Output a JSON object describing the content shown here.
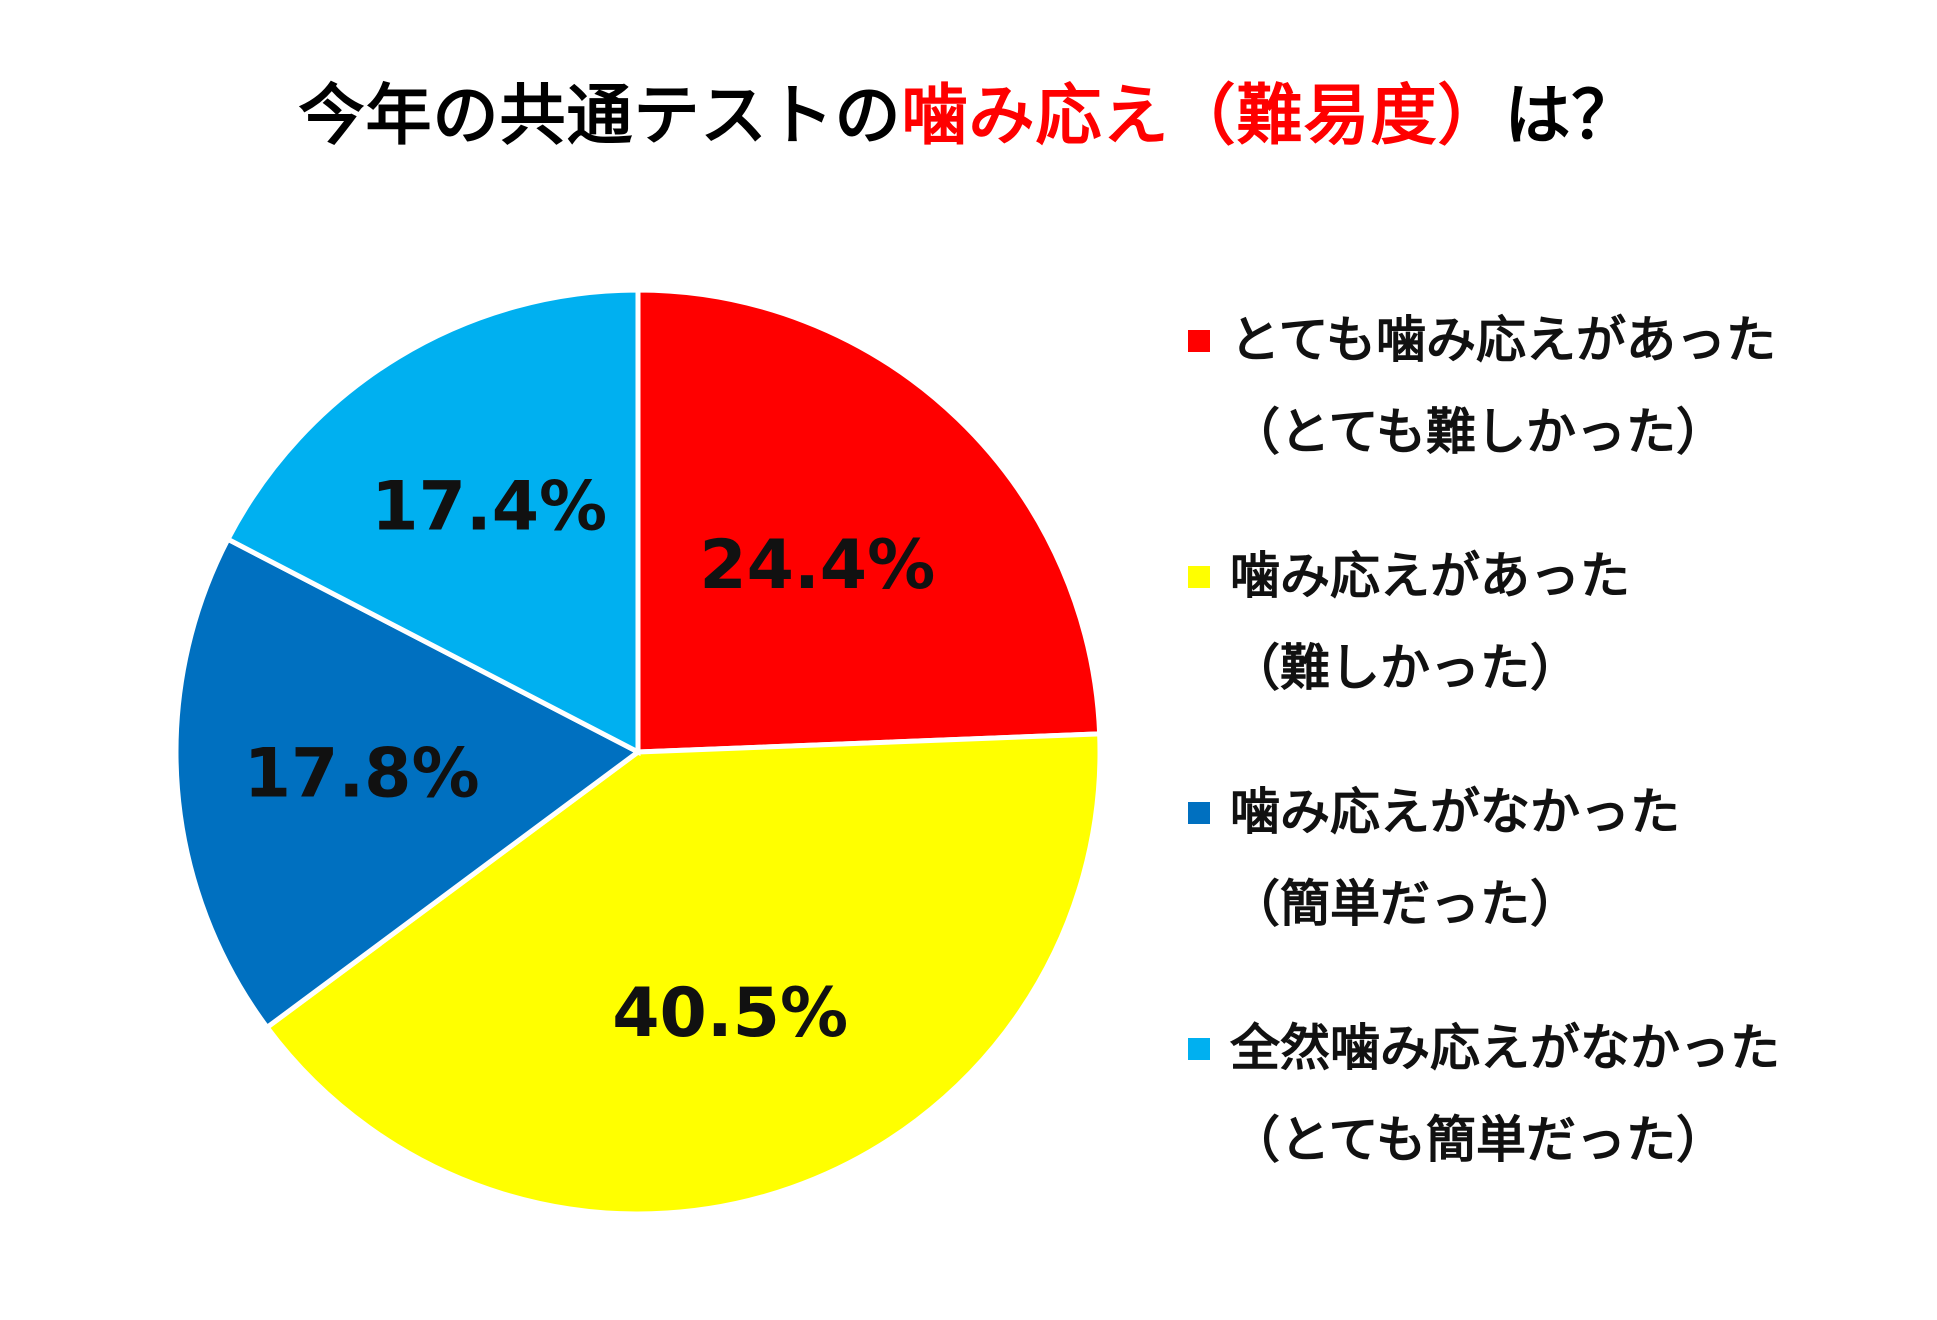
{
  "title": {
    "prefix": "今年の共通テストの",
    "highlight": "噛み応え（難易度）",
    "suffix": "は？",
    "highlight_color": "#ff0000"
  },
  "chart_data": {
    "type": "pie",
    "title": "今年の共通テストの噛み応え（難易度）は？",
    "legend_position": "right",
    "slices": [
      {
        "label": "とても噛み応えがあった（とても難しかった）",
        "value": 24.4,
        "display": "24.4%",
        "color": "#ff0000"
      },
      {
        "label": "噛み応えがあった（難しかった）",
        "value": 40.5,
        "display": "40.5%",
        "color": "#ffff00"
      },
      {
        "label": "噛み応えがなかった（簡単だった）",
        "value": 17.8,
        "display": "17.8%",
        "color": "#0070c0"
      },
      {
        "label": "全然噛み応えがなかった（とても簡単だった）",
        "value": 17.4,
        "display": "17.4%",
        "color": "#00b0f0"
      }
    ]
  },
  "legend": [
    {
      "line1": "とても噛み応えがあった",
      "line2": "（とても難しかった）",
      "color": "#ff0000"
    },
    {
      "line1": "噛み応えがあった",
      "line2": "（難しかった）",
      "color": "#ffff00"
    },
    {
      "line1": "噛み応えがなかった",
      "line2": "（簡単だった）",
      "color": "#0070c0"
    },
    {
      "line1": "全然噛み応えがなかった",
      "line2": "（とても簡単だった）",
      "color": "#00b0f0"
    }
  ]
}
